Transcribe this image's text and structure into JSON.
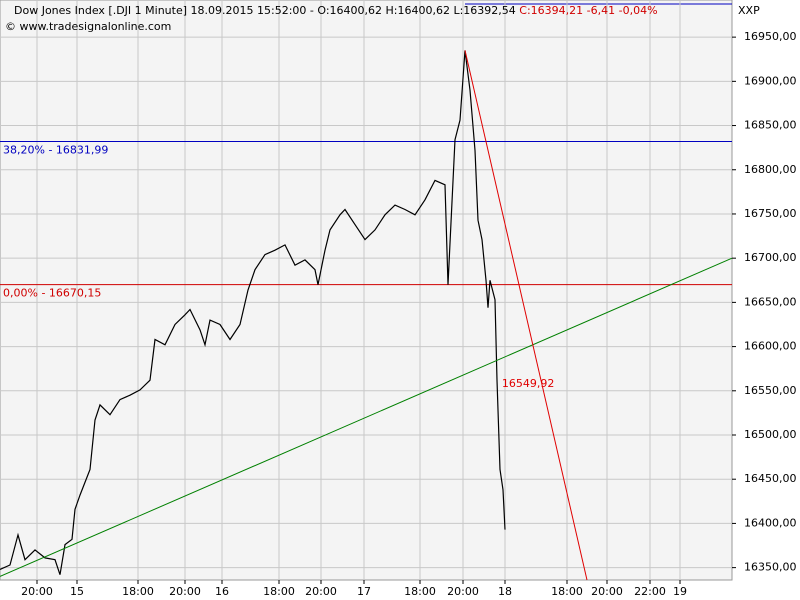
{
  "chart_data": {
    "type": "line",
    "title": "Dow Jones Index [.DJI  1 Minute] 18.09.2015 15:52:00 - O:16400,62 H:16400,62 L:16392,54",
    "title_change": "C:16394,21 -6,41 -0,04%",
    "subtitle": "© www.tradesignalonline.com",
    "corner_label": "XXP",
    "x": [
      0,
      10,
      18,
      25,
      35,
      45,
      55,
      60,
      65,
      72,
      75,
      80,
      90,
      95,
      100,
      110,
      120,
      130,
      140,
      150,
      155,
      165,
      175,
      185,
      190,
      200,
      205,
      210,
      220,
      230,
      240,
      248,
      255,
      265,
      275,
      285,
      295,
      305,
      315,
      318,
      325,
      330,
      340,
      345,
      355,
      365,
      375,
      385,
      395,
      405,
      415,
      425,
      435,
      445,
      448,
      455,
      460,
      465,
      470,
      475,
      478,
      482,
      486,
      488,
      490,
      495,
      497,
      500,
      503,
      505
    ],
    "series": [
      {
        "name": "Dow Jones Index",
        "color": "#000000",
        "values": [
          16348,
          16353,
          16387,
          16359,
          16370,
          16361,
          16359,
          16342,
          16376,
          16382,
          16416,
          16432,
          16461,
          16517,
          16534,
          16523,
          16540,
          16545,
          16551,
          16562,
          16608,
          16602,
          16625,
          16636,
          16642,
          16619,
          16602,
          16630,
          16625,
          16608,
          16625,
          16664,
          16687,
          16704,
          16709,
          16715,
          16692,
          16698,
          16687,
          16670,
          16709,
          16732,
          16749,
          16755,
          16738,
          16721,
          16732,
          16749,
          16760,
          16755,
          16749,
          16766,
          16788,
          16783,
          16670,
          16834,
          16856,
          16935,
          16890,
          16822,
          16743,
          16721,
          16675,
          16644,
          16675,
          16653,
          16562,
          16461,
          16438,
          16393
        ]
      }
    ],
    "xlim": [
      0,
      732
    ],
    "ylim": [
      16336,
      16992
    ],
    "yticks": [
      {
        "value": 16350,
        "label": "16350,00"
      },
      {
        "value": 16400,
        "label": "16400,00"
      },
      {
        "value": 16450,
        "label": "16450,00"
      },
      {
        "value": 16500,
        "label": "16500,00"
      },
      {
        "value": 16550,
        "label": "16550,00"
      },
      {
        "value": 16600,
        "label": "16600,00"
      },
      {
        "value": 16650,
        "label": "16650,00"
      },
      {
        "value": 16700,
        "label": "16700,00"
      },
      {
        "value": 16750,
        "label": "16750,00"
      },
      {
        "value": 16800,
        "label": "16800,00"
      },
      {
        "value": 16850,
        "label": "16850,00"
      },
      {
        "value": 16900,
        "label": "16900,00"
      },
      {
        "value": 16950,
        "label": "16950,00"
      }
    ],
    "xticks": [
      {
        "value": 37,
        "label": "20:00"
      },
      {
        "value": 77,
        "label": "15"
      },
      {
        "value": 138,
        "label": "18:00"
      },
      {
        "value": 185,
        "label": "20:00"
      },
      {
        "value": 222,
        "label": "16"
      },
      {
        "value": 279,
        "label": "18:00"
      },
      {
        "value": 321,
        "label": "20:00"
      },
      {
        "value": 364,
        "label": "17"
      },
      {
        "value": 420,
        "label": "18:00"
      },
      {
        "value": 463,
        "label": "20:00"
      },
      {
        "value": 505,
        "label": "18"
      },
      {
        "value": 567,
        "label": "18:00"
      },
      {
        "value": 607,
        "label": "20:00"
      },
      {
        "value": 650,
        "label": "22:00"
      },
      {
        "value": 680,
        "label": "19"
      }
    ],
    "grid": true,
    "hlines": [
      {
        "label": "38,20% - 16831,99",
        "value": 16831.99,
        "color": "#0000c0"
      },
      {
        "label": "0,00% - 16670,15",
        "value": 16670.15,
        "color": "#d00000"
      }
    ],
    "trendlines": [
      {
        "x": [
          0,
          732
        ],
        "y": [
          16340,
          16700
        ],
        "color": "#008000"
      },
      {
        "x": [
          465,
          587
        ],
        "y": [
          16935,
          16336
        ],
        "color": "#e00000",
        "label": "16549,92"
      }
    ]
  }
}
